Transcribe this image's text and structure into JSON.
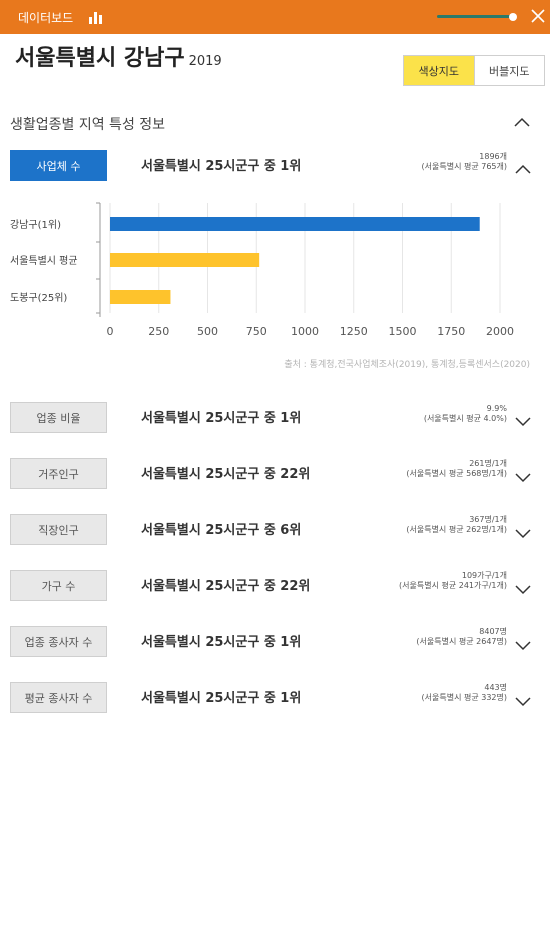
{
  "header": {
    "title": "데이터보드",
    "chart_icon": "bar-chart-icon",
    "close_icon": "close-icon",
    "background": "#e8781d",
    "slider_value": 1.0
  },
  "region": {
    "name": "서울특별시 강남구",
    "year": "2019"
  },
  "map_toggle": {
    "options": [
      "색상지도",
      "버블지도"
    ],
    "selected": "색상지도",
    "active_color": "#fbe24a"
  },
  "section": {
    "title": "생활업종별 지역 특성 정보"
  },
  "metrics": [
    {
      "label": "사업체 수",
      "rank": "서울특별시 25시군구 중 1위",
      "value": "1896개",
      "avg": "(서울특별시 평균 765개)",
      "expanded": true
    },
    {
      "label": "업종 비율",
      "rank": "서울특별시 25시군구 중 1위",
      "value": "9.9%",
      "avg": "(서울특별시 평균 4.0%)",
      "expanded": false
    },
    {
      "label": "거주인구",
      "rank": "서울특별시 25시군구 중 22위",
      "value": "261명/1개",
      "avg": "(서울특별시 평균 568명/1개)",
      "expanded": false
    },
    {
      "label": "직장인구",
      "rank": "서울특별시 25시군구 중 6위",
      "value": "367명/1개",
      "avg": "(서울특별시 평균 262명/1개)",
      "expanded": false
    },
    {
      "label": "가구 수",
      "rank": "서울특별시 25시군구 중 22위",
      "value": "109가구/1개",
      "avg": "(서울특별시 평균 241가구/1개)",
      "expanded": false
    },
    {
      "label": "업종 종사자 수",
      "rank": "서울특별시 25시군구 중 1위",
      "value": "8407명",
      "avg": "(서울특별시 평균 2647명)",
      "expanded": false
    },
    {
      "label": "평균 종사자 수",
      "rank": "서울특별시 25시군구 중 1위",
      "value": "443명",
      "avg": "(서울특별시 평균 332명)",
      "expanded": false
    }
  ],
  "chart_data": {
    "type": "bar",
    "orientation": "horizontal",
    "categories": [
      "강남구(1위)",
      "서울특별시 평균",
      "도봉구(25위)"
    ],
    "values": [
      1896,
      765,
      310
    ],
    "colors": [
      "#1d73c9",
      "#fec32c",
      "#fec32c"
    ],
    "xlim": [
      0,
      2000
    ],
    "xticks": [
      0,
      250,
      500,
      750,
      1000,
      1250,
      1500,
      1750,
      2000
    ],
    "grid": true
  },
  "source": "출처 : 통계청,전국사업체조사(2019), 통계청,등록센서스(2020)"
}
